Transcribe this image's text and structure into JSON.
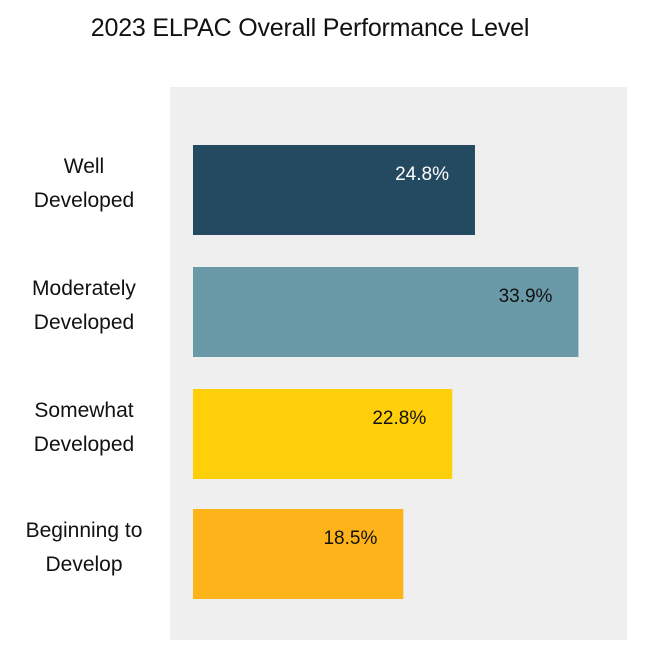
{
  "chart_data": {
    "type": "bar",
    "orientation": "horizontal",
    "title": "2023 ELPAC Overall Performance Level",
    "categories": [
      [
        "Well",
        "Developed"
      ],
      [
        "Moderately",
        "Developed"
      ],
      [
        "Somewhat",
        "Developed"
      ],
      [
        "Beginning to",
        "Develop"
      ]
    ],
    "values": [
      24.8,
      33.9,
      22.8,
      18.5
    ],
    "value_labels": [
      "24.8%",
      "33.9%",
      "22.8%",
      "18.5%"
    ],
    "colors": [
      "#234a60",
      "#6a9aa8",
      "#ffd00a",
      "#ffb31a"
    ],
    "label_colors": [
      "#ffffff",
      "#111111",
      "#111111",
      "#111111"
    ],
    "xlim": [
      0,
      35
    ],
    "grid": false,
    "legend": "none"
  }
}
